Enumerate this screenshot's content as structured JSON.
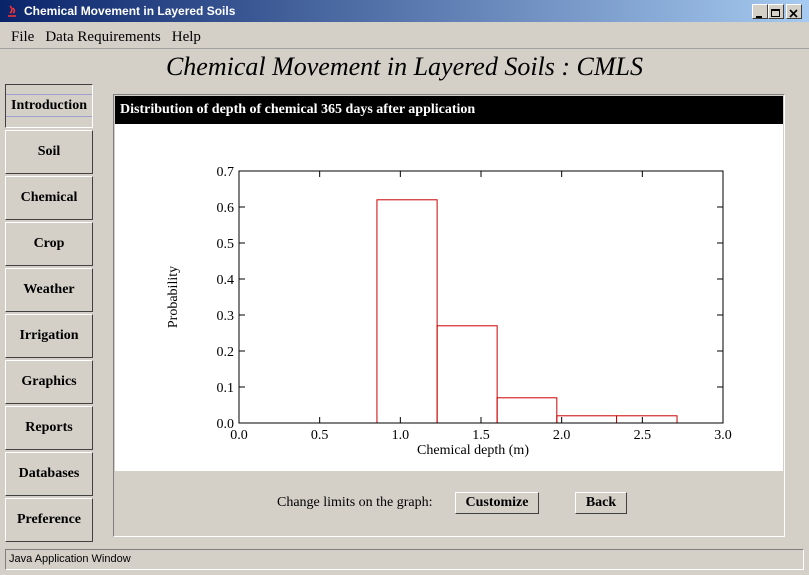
{
  "window": {
    "title": "Chemical Movement in Layered Soils"
  },
  "menu": [
    "File",
    "Data Requirements",
    "Help"
  ],
  "header": {
    "title": "Chemical Movement in Layered Soils : CMLS"
  },
  "sidebar": [
    "Introduction",
    "Soil",
    "Chemical",
    "Crop",
    "Weather",
    "Irrigation",
    "Graphics",
    "Reports",
    "Databases",
    "Preference"
  ],
  "panel": {
    "title": "Distribution of depth of chemical 365 days after application",
    "controls": {
      "label": "Change limits on the graph:",
      "buttons": [
        "Customize",
        "Back"
      ]
    }
  },
  "status": "Java Application Window",
  "chart_data": {
    "type": "histogram",
    "bins": [
      0.855,
      1.228,
      1.6,
      1.97,
      2.34,
      2.715
    ],
    "counts": [
      0.62,
      0.27,
      0.07,
      0.02,
      0.02
    ],
    "color": "#cc0000",
    "xlabel": "Chemical depth (m)",
    "ylabel": "Probability",
    "xlim": [
      0,
      3
    ],
    "ylim": [
      0,
      0.7
    ],
    "xticks": [
      {
        "value": 0,
        "label": "0.0"
      },
      0.5,
      {
        "value": 1,
        "label": "1.0"
      },
      1.5,
      {
        "value": 2,
        "label": "2.0"
      },
      2.5,
      {
        "value": 3,
        "label": "3.0"
      }
    ],
    "yticks": [
      {
        "value": 0,
        "label": "0.0"
      },
      0.1,
      0.2,
      0.3,
      0.4,
      0.5,
      0.6,
      0.7
    ]
  }
}
